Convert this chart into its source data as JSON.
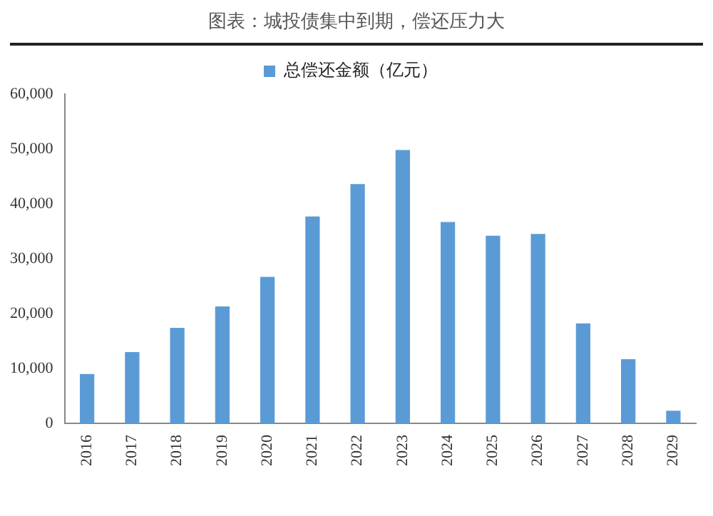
{
  "chart_data": {
    "type": "bar",
    "title": "图表：城投债集中到期，偿还压力大",
    "categories": [
      "2016",
      "2017",
      "2018",
      "2019",
      "2020",
      "2021",
      "2022",
      "2023",
      "2024",
      "2025",
      "2026",
      "2027",
      "2028",
      "2029"
    ],
    "series": [
      {
        "name": "总偿还金额（亿元）",
        "color": "#5b9bd5",
        "values": [
          9000,
          13000,
          17400,
          21300,
          26700,
          37700,
          43600,
          49800,
          36700,
          34200,
          34500,
          18200,
          11700,
          2300
        ]
      }
    ],
    "ylim": [
      0,
      60000
    ],
    "yticks": [
      0,
      {
        "value": 10000,
        "label": "10,000"
      },
      {
        "value": 20000,
        "label": "20,000"
      },
      {
        "value": 30000,
        "label": "30,000"
      },
      {
        "value": 40000,
        "label": "40,000"
      },
      {
        "value": 50000,
        "label": "50,000"
      },
      {
        "value": 60000,
        "label": "60,000"
      }
    ],
    "grid": false,
    "legend": "top"
  }
}
